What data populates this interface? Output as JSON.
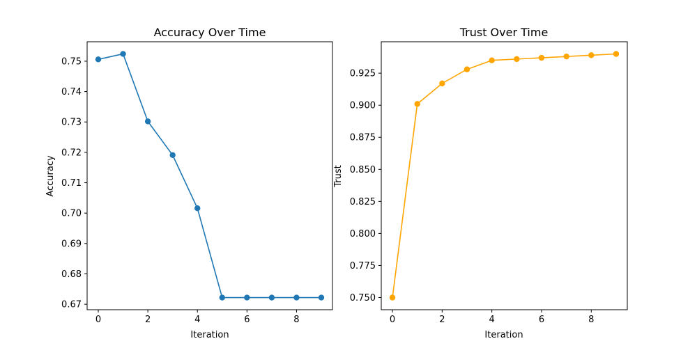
{
  "chart_data": [
    {
      "type": "line",
      "title": "Accuracy Over Time",
      "xlabel": "Iteration",
      "ylabel": "Accuracy",
      "x": [
        0,
        1,
        2,
        3,
        4,
        5,
        6,
        7,
        8,
        9
      ],
      "series": [
        {
          "values": [
            0.7506,
            0.7524,
            0.7302,
            0.7191,
            0.7016,
            0.6722,
            0.6722,
            0.6722,
            0.6722,
            0.6722
          ],
          "color": "#1f77b4"
        }
      ],
      "xlim": [
        -0.45,
        9.45
      ],
      "ylim": [
        0.6682,
        0.7564
      ],
      "xticks": [
        0,
        2,
        4,
        6,
        8
      ],
      "xtick_labels": [
        "0",
        "2",
        "4",
        "6",
        "8"
      ],
      "yticks": [
        0.67,
        0.68,
        0.69,
        0.7,
        0.71,
        0.72,
        0.73,
        0.74,
        0.75
      ],
      "ytick_labels": [
        "0.67",
        "0.68",
        "0.69",
        "0.70",
        "0.71",
        "0.72",
        "0.73",
        "0.74",
        "0.75"
      ],
      "grid": false,
      "marker": "circle"
    },
    {
      "type": "line",
      "title": "Trust Over Time",
      "xlabel": "Iteration",
      "ylabel": "Trust",
      "x": [
        0,
        1,
        2,
        3,
        4,
        5,
        6,
        7,
        8,
        9
      ],
      "series": [
        {
          "values": [
            0.75,
            0.901,
            0.917,
            0.928,
            0.935,
            0.936,
            0.937,
            0.938,
            0.939,
            0.94
          ],
          "color": "#ffa500"
        }
      ],
      "xlim": [
        -0.45,
        9.45
      ],
      "ylim": [
        0.7405,
        0.9495
      ],
      "xticks": [
        0,
        2,
        4,
        6,
        8
      ],
      "xtick_labels": [
        "0",
        "2",
        "4",
        "6",
        "8"
      ],
      "yticks": [
        0.75,
        0.775,
        0.8,
        0.825,
        0.85,
        0.875,
        0.9,
        0.925
      ],
      "ytick_labels": [
        "0.750",
        "0.775",
        "0.800",
        "0.825",
        "0.850",
        "0.875",
        "0.900",
        "0.925"
      ],
      "grid": false,
      "marker": "circle"
    }
  ]
}
